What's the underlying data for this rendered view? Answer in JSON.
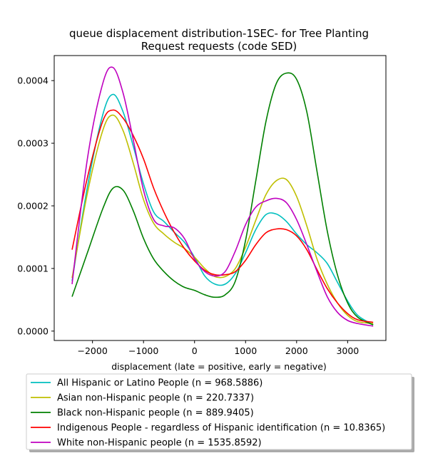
{
  "chart_data": {
    "type": "line",
    "title_line1": "queue displacement distribution-1SEC-  for Tree Planting",
    "title_line2": "Request  requests (code SED)",
    "xlabel": "displacement (late = positive, early = negative)",
    "ylabel": "",
    "xlim": [
      -2750,
      3750
    ],
    "ylim": [
      -1.5e-05,
      0.00044
    ],
    "x_ticks": [
      -2000,
      -1000,
      0,
      1000,
      2000,
      3000
    ],
    "x_tick_labels": [
      "−2000",
      "−1000",
      "0",
      "1000",
      "2000",
      "3000"
    ],
    "y_ticks": [
      0.0,
      0.0001,
      0.0002,
      0.0003,
      0.0004
    ],
    "y_tick_labels": [
      "0.0000",
      "0.0001",
      "0.0002",
      "0.0003",
      "0.0004"
    ],
    "grid": false,
    "legend_position": "below plot",
    "x": [
      -2400,
      -2100,
      -1800,
      -1600,
      -1400,
      -1200,
      -1000,
      -800,
      -600,
      -400,
      -200,
      0,
      200,
      400,
      600,
      800,
      1000,
      1200,
      1400,
      1600,
      1800,
      2000,
      2200,
      2400,
      2600,
      2800,
      3000,
      3200,
      3500
    ],
    "series": [
      {
        "name": "All Hispanic or Latino People (n = 968.5886)",
        "color": "#00bfbf",
        "values": [
          8e-05,
          0.00023,
          0.000345,
          0.000378,
          0.00035,
          0.000295,
          0.000235,
          0.00019,
          0.000175,
          0.000158,
          0.000142,
          0.000118,
          8.8e-05,
          7.5e-05,
          7.5e-05,
          9.2e-05,
          0.000125,
          0.000162,
          0.000186,
          0.000187,
          0.000175,
          0.000155,
          0.000138,
          0.000125,
          0.000108,
          7.8e-05,
          4.8e-05,
          2.5e-05,
          1e-05
        ]
      },
      {
        "name": "Asian non-Hispanic people (n = 220.7337)",
        "color": "#bfbf00",
        "values": [
          8.5e-05,
          0.00022,
          0.00032,
          0.000345,
          0.00032,
          0.000268,
          0.00021,
          0.000172,
          0.000155,
          0.000142,
          0.000132,
          0.000118,
          0.0001,
          8.7e-05,
          8.7e-05,
          0.0001,
          0.000134,
          0.000177,
          0.000218,
          0.00024,
          0.000242,
          0.000215,
          0.000168,
          0.000115,
          7.5e-05,
          4.5e-05,
          2.5e-05,
          1.5e-05,
          1.2e-05
        ]
      },
      {
        "name": "Black non-Hispanic people (n = 889.9405)",
        "color": "#008000",
        "values": [
          5.5e-05,
          0.000125,
          0.000195,
          0.000228,
          0.000225,
          0.000192,
          0.000148,
          0.000115,
          9.5e-05,
          8e-05,
          7e-05,
          6.5e-05,
          5.8e-05,
          5.4e-05,
          5.8e-05,
          8e-05,
          0.000145,
          0.00024,
          0.000335,
          0.000395,
          0.000412,
          0.000402,
          0.00035,
          0.000255,
          0.00016,
          9e-05,
          4.5e-05,
          2.2e-05,
          1e-05
        ]
      },
      {
        "name": "Indigenous People - regardless of Hispanic identification (n = 10.8365)",
        "color": "#ff0000",
        "values": [
          0.00013,
          0.000245,
          0.000335,
          0.000353,
          0.00034,
          0.000312,
          0.000275,
          0.000228,
          0.00019,
          0.000158,
          0.000132,
          0.000112,
          9.7e-05,
          9e-05,
          9e-05,
          9.5e-05,
          0.000113,
          0.000138,
          0.000157,
          0.000163,
          0.000162,
          0.000152,
          0.00013,
          9.8e-05,
          6.8e-05,
          4.5e-05,
          2.8e-05,
          1.8e-05,
          1.4e-05
        ]
      },
      {
        "name": "White non-Hispanic people (n = 1535.8592)",
        "color": "#bf00bf",
        "values": [
          7.5e-05,
          0.000275,
          0.000395,
          0.000421,
          0.00038,
          0.000305,
          0.000225,
          0.000178,
          0.000168,
          0.000165,
          0.000148,
          0.000115,
          9.5e-05,
          8.8e-05,
          9.5e-05,
          0.000128,
          0.00017,
          0.000198,
          0.000208,
          0.000212,
          0.000205,
          0.000178,
          0.000138,
          9.5e-05,
          5.5e-05,
          3e-05,
          1.7e-05,
          1.2e-05,
          8e-06
        ]
      }
    ]
  }
}
